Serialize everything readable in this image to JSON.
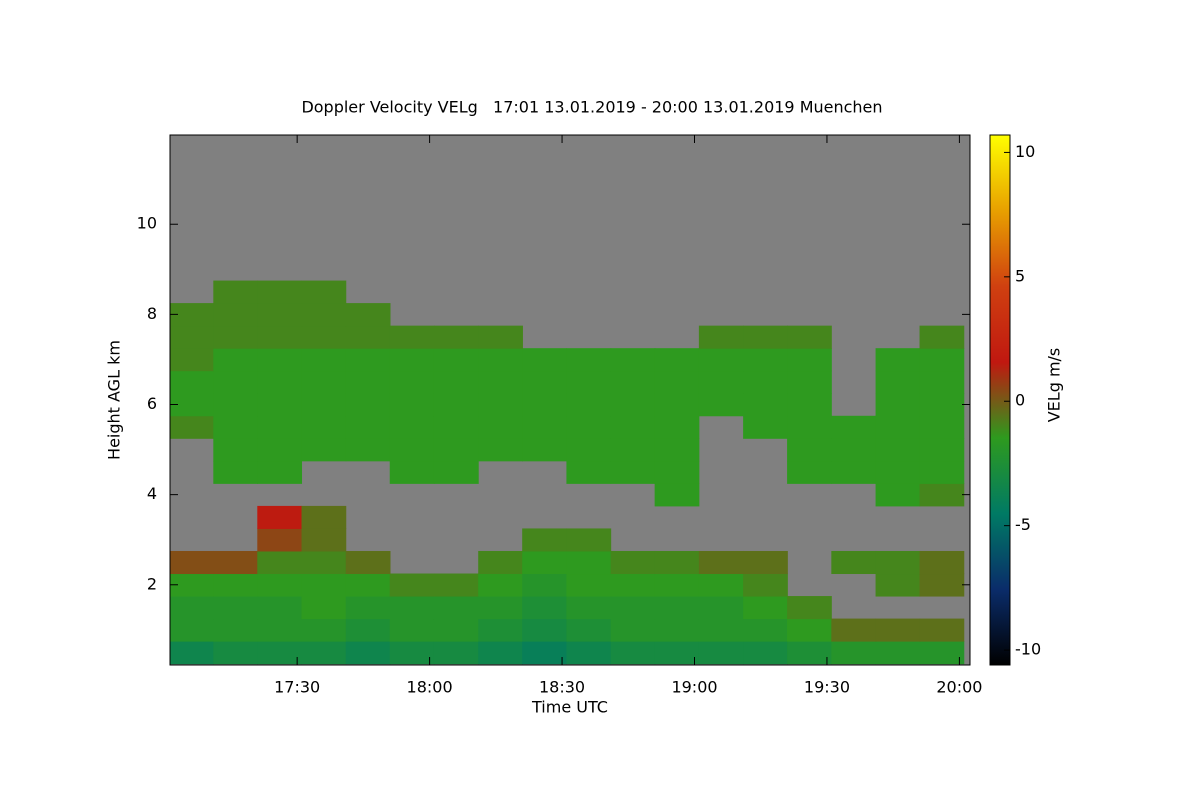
{
  "chart_data": {
    "type": "heatmap",
    "title": "Doppler Velocity VELg   17:01 13.01.2019 - 20:00 13.01.2019 Muenchen",
    "xlabel": "Time UTC",
    "ylabel": "Height AGL km",
    "xlim": [
      17.02,
      20.04
    ],
    "xticks": [
      {
        "value": 17.5,
        "label": "17:30"
      },
      {
        "value": 18.0,
        "label": "18:00"
      },
      {
        "value": 18.5,
        "label": "18:30"
      },
      {
        "value": 19.0,
        "label": "19:00"
      },
      {
        "value": 19.5,
        "label": "19:30"
      },
      {
        "value": 20.0,
        "label": "20:00"
      }
    ],
    "ylim": [
      0.22,
      11.98
    ],
    "yticks": [
      2,
      4,
      6,
      8,
      10
    ],
    "x": [
      17.1,
      17.267,
      17.433,
      17.6,
      17.767,
      17.933,
      18.1,
      18.267,
      18.433,
      18.6,
      18.767,
      18.933,
      19.1,
      19.267,
      19.433,
      19.6,
      19.767,
      19.933
    ],
    "y": [
      0.5,
      1.0,
      1.5,
      2.0,
      2.5,
      3.0,
      3.5,
      4.0,
      4.5,
      5.0,
      5.5,
      6.0,
      6.5,
      7.0,
      7.5,
      8.0,
      8.5,
      9.0,
      9.5,
      10.0,
      10.5,
      11.0,
      11.5
    ],
    "z": [
      [
        -3.5,
        -3,
        -3,
        -3,
        -3.5,
        -3,
        -3,
        -3.5,
        -4,
        -3.5,
        -3,
        -3,
        -3,
        -3,
        -2.5,
        -2,
        -2,
        -2
      ],
      [
        -2,
        -2,
        -2,
        -2,
        -2.5,
        -2,
        -2,
        -2.5,
        -3,
        -2.5,
        -2,
        -2,
        -2,
        -2,
        -1.5,
        -0.5,
        -0.5,
        -0.5
      ],
      [
        -2,
        -2,
        -2,
        -1.5,
        -2,
        -2,
        -2,
        -2,
        -2.5,
        -2,
        -2,
        -2,
        -2,
        -1.5,
        -1,
        null,
        null,
        null
      ],
      [
        -1.5,
        -1.5,
        -1.5,
        -1.5,
        -1.5,
        -1,
        -1,
        -1.5,
        -2,
        -1.5,
        -1.5,
        -1.5,
        -1.5,
        -1,
        null,
        null,
        -1,
        -0.5
      ],
      [
        0.3,
        0.3,
        -1,
        -1,
        -0.5,
        null,
        null,
        -1,
        -1.5,
        -1.5,
        -1,
        -1,
        -0.5,
        -0.5,
        null,
        -1,
        -1,
        -0.5
      ],
      [
        null,
        null,
        0.5,
        -0.5,
        null,
        null,
        null,
        null,
        -1,
        -1,
        null,
        null,
        null,
        null,
        null,
        null,
        null,
        null
      ],
      [
        null,
        null,
        1.5,
        -0.5,
        null,
        null,
        null,
        null,
        null,
        null,
        null,
        null,
        null,
        null,
        null,
        null,
        null,
        null
      ],
      [
        null,
        null,
        null,
        null,
        null,
        null,
        null,
        null,
        null,
        null,
        null,
        -1.5,
        null,
        null,
        null,
        null,
        -1.5,
        -1
      ],
      [
        null,
        -1.5,
        -1.5,
        null,
        null,
        -1.5,
        -1.5,
        null,
        null,
        -1.5,
        -1.5,
        -1.5,
        null,
        null,
        -1.5,
        -1.5,
        -1.5,
        -1.5
      ],
      [
        null,
        -1.5,
        -1.5,
        -1.5,
        -1.5,
        -1.5,
        -1.5,
        -1.5,
        -1.5,
        -1.5,
        -1.5,
        -1.5,
        null,
        null,
        -1.5,
        -1.5,
        -1.5,
        -1.5
      ],
      [
        -1,
        -1.5,
        -1.5,
        -1.5,
        -1.5,
        -1.5,
        -1.5,
        -1.5,
        -1.5,
        -1.5,
        -1.5,
        -1.5,
        null,
        -1.5,
        -1.5,
        -1.5,
        -1.5,
        -1.5
      ],
      [
        -1.5,
        -1.5,
        -1.5,
        -1.5,
        -1.5,
        -1.5,
        -1.5,
        -1.5,
        -1.5,
        -1.5,
        -1.5,
        -1.5,
        -1.5,
        -1.5,
        -1.5,
        null,
        -1.5,
        -1.5
      ],
      [
        -1.5,
        -1.5,
        -1.5,
        -1.5,
        -1.5,
        -1.5,
        -1.5,
        -1.5,
        -1.5,
        -1.5,
        -1.5,
        -1.5,
        -1.5,
        -1.5,
        -1.5,
        null,
        -1.5,
        -1.5
      ],
      [
        -1,
        -1.5,
        -1.5,
        -1.5,
        -1.5,
        -1.5,
        -1.5,
        -1.5,
        -1.5,
        -1.5,
        -1.5,
        -1.5,
        -1.5,
        -1.5,
        -1.5,
        null,
        -1.5,
        -1.5
      ],
      [
        -1,
        -1,
        -1,
        -1,
        -1,
        -1,
        -1,
        -1,
        null,
        null,
        null,
        null,
        -1,
        -1,
        -1,
        null,
        null,
        -1
      ],
      [
        -1,
        -1,
        -1,
        -1,
        -1,
        null,
        null,
        null,
        null,
        null,
        null,
        null,
        null,
        null,
        null,
        null,
        null,
        null
      ],
      [
        null,
        -1,
        -1,
        -1,
        null,
        null,
        null,
        null,
        null,
        null,
        null,
        null,
        null,
        null,
        null,
        null,
        null,
        null
      ],
      [
        null,
        null,
        null,
        null,
        null,
        null,
        null,
        null,
        null,
        null,
        null,
        null,
        null,
        null,
        null,
        null,
        null,
        null
      ],
      [
        null,
        null,
        null,
        null,
        null,
        null,
        null,
        null,
        null,
        null,
        null,
        null,
        null,
        null,
        null,
        null,
        null,
        null
      ],
      [
        null,
        null,
        null,
        null,
        null,
        null,
        null,
        null,
        null,
        null,
        null,
        null,
        null,
        null,
        null,
        null,
        null,
        null
      ],
      [
        null,
        null,
        null,
        null,
        null,
        null,
        null,
        null,
        null,
        null,
        null,
        null,
        null,
        null,
        null,
        null,
        null,
        null
      ],
      [
        null,
        null,
        null,
        null,
        null,
        null,
        null,
        null,
        null,
        null,
        null,
        null,
        null,
        null,
        null,
        null,
        null,
        null
      ],
      [
        null,
        null,
        null,
        null,
        null,
        null,
        null,
        null,
        null,
        null,
        null,
        null,
        null,
        null,
        null,
        null,
        null,
        null
      ]
    ],
    "colorbar": {
      "label": "VELg m/s",
      "lim": [
        -10.6,
        10.7
      ],
      "ticks": [
        -10,
        -5,
        0,
        5,
        10
      ],
      "colors": [
        "#000000",
        "#0a2c6a",
        "#007a64",
        "#2e9a1e",
        "#c01810",
        "#d04010",
        "#e8a000",
        "#ffff00"
      ]
    }
  }
}
